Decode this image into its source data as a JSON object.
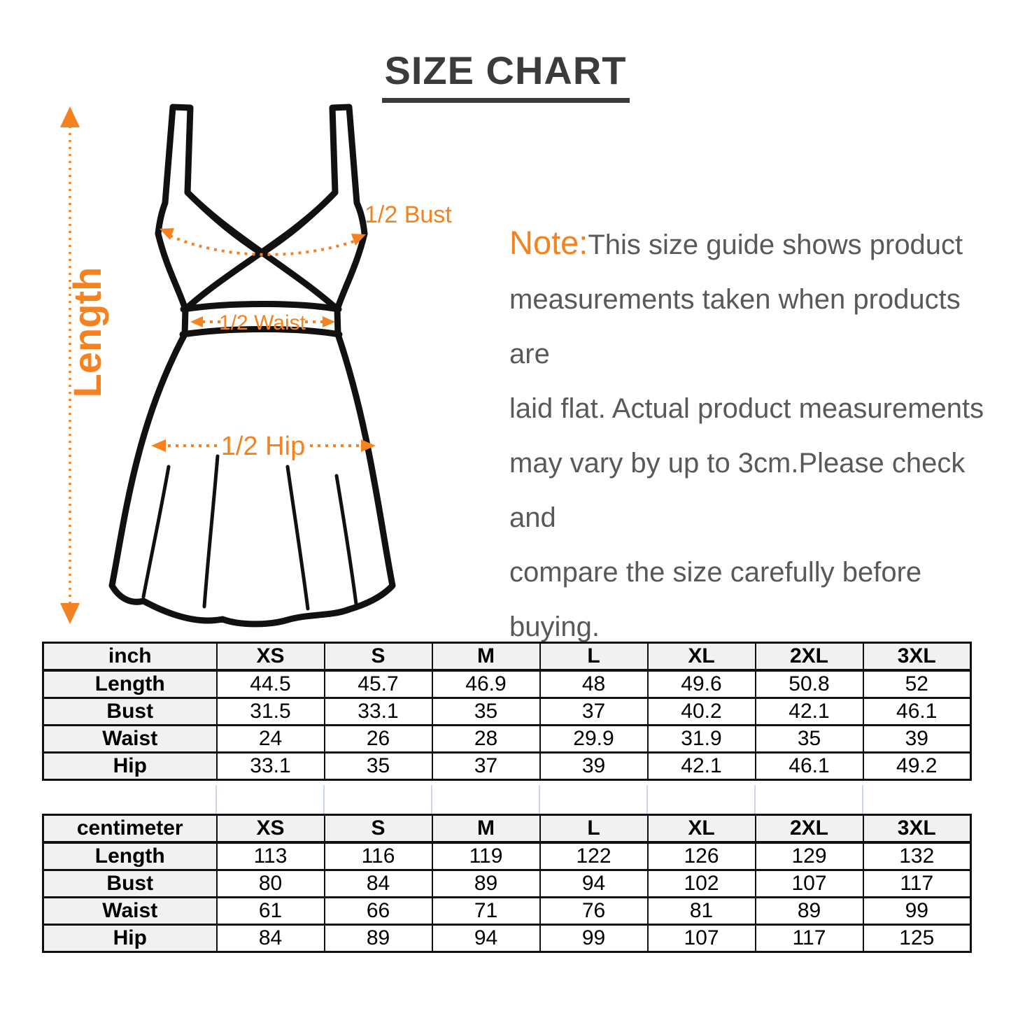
{
  "title": "SIZE CHART",
  "colors": {
    "accent_orange": "#f58220",
    "note_text": "#58595b",
    "title_text": "#3b3b3b",
    "table_header_bg": "#f1f1f1"
  },
  "note": {
    "label": "Note:",
    "lines": [
      "This size guide shows product",
      "measurements taken when products are",
      "laid flat. Actual product measurements",
      "may vary by up to 3cm.Please check and",
      "compare the size carefully before buying."
    ]
  },
  "diagram": {
    "length_label": "Length",
    "bust_label": "1/2 Bust",
    "waist_label": "1/2 Waist",
    "hip_label": "1/2 Hip"
  },
  "tables": [
    {
      "unit_header": "inch",
      "sizes": [
        "XS",
        "S",
        "M",
        "L",
        "XL",
        "2XL",
        "3XL"
      ],
      "rows": [
        {
          "label": "Length",
          "values": [
            "44.5",
            "45.7",
            "46.9",
            "48",
            "49.6",
            "50.8",
            "52"
          ]
        },
        {
          "label": "Bust",
          "values": [
            "31.5",
            "33.1",
            "35",
            "37",
            "40.2",
            "42.1",
            "46.1"
          ]
        },
        {
          "label": "Waist",
          "values": [
            "24",
            "26",
            "28",
            "29.9",
            "31.9",
            "35",
            "39"
          ]
        },
        {
          "label": "Hip",
          "values": [
            "33.1",
            "35",
            "37",
            "39",
            "42.1",
            "46.1",
            "49.2"
          ]
        }
      ]
    },
    {
      "unit_header": "centimeter",
      "sizes": [
        "XS",
        "S",
        "M",
        "L",
        "XL",
        "2XL",
        "3XL"
      ],
      "rows": [
        {
          "label": "Length",
          "values": [
            "113",
            "116",
            "119",
            "122",
            "126",
            "129",
            "132"
          ]
        },
        {
          "label": "Bust",
          "values": [
            "80",
            "84",
            "89",
            "94",
            "102",
            "107",
            "117"
          ]
        },
        {
          "label": "Waist",
          "values": [
            "61",
            "66",
            "71",
            "76",
            "81",
            "89",
            "99"
          ]
        },
        {
          "label": "Hip",
          "values": [
            "84",
            "89",
            "94",
            "99",
            "107",
            "117",
            "125"
          ]
        }
      ]
    }
  ]
}
